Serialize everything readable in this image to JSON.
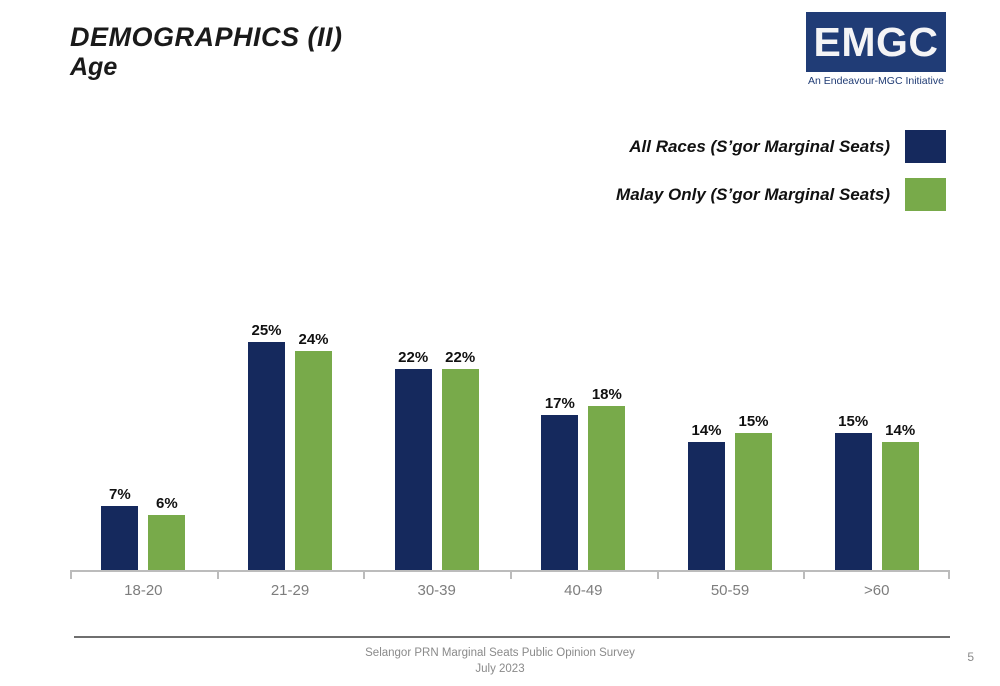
{
  "page": {
    "title_line1": "DEMOGRAPHICS (II)",
    "title_line2": "Age",
    "page_number": "5"
  },
  "logo": {
    "text": "EMGC",
    "tagline": "An Endeavour-MGC Initiative",
    "box_color": "#203c76"
  },
  "legend": [
    {
      "label": "All Races (S’gor Marginal Seats)",
      "color": "#15295d"
    },
    {
      "label": "Malay Only (S’gor Marginal Seats)",
      "color": "#78aa4a"
    }
  ],
  "footer": {
    "line1": "Selangor PRN Marginal Seats Public Opinion Survey",
    "line2": "July 2023"
  },
  "chart_data": {
    "type": "bar",
    "title": "Demographics (II) - Age",
    "categories": [
      "18-20",
      "21-29",
      "30-39",
      "40-49",
      "50-59",
      ">60"
    ],
    "series": [
      {
        "name": "All Races (S’gor Marginal Seats)",
        "color": "#15295d",
        "values": [
          7,
          25,
          22,
          17,
          14,
          15
        ]
      },
      {
        "name": "Malay Only (S’gor Marginal Seats)",
        "color": "#78aa4a",
        "values": [
          6,
          24,
          22,
          18,
          15,
          14
        ]
      }
    ],
    "value_suffix": "%",
    "xlabel": "",
    "ylabel": "",
    "ylim": [
      0,
      27
    ],
    "grid": false,
    "legend_position": "top-right",
    "data_labels": true
  }
}
